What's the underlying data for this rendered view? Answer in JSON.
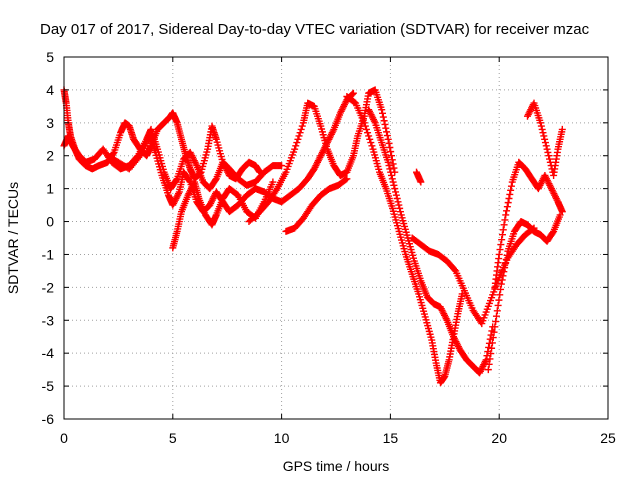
{
  "chart_data": {
    "type": "scatter",
    "title": "Day 017 of 2017, Sidereal Day-to-day VTEC variation (SDTVAR) for receiver mzac",
    "xlabel": "GPS time / hours",
    "ylabel": "SDTVAR / TECUs",
    "xlim": [
      0,
      25
    ],
    "ylim": [
      -6,
      5
    ],
    "xticks": [
      "0",
      "5",
      "10",
      "15",
      "20",
      "25"
    ],
    "yticks": [
      "5",
      "4",
      "3",
      "2",
      "1",
      "0",
      "-1",
      "-2",
      "-3",
      "-4",
      "-5",
      "-6"
    ],
    "grid": true,
    "marker": "plus",
    "color": "#ff0000",
    "series": [
      {
        "x": [
          0.0,
          0.1,
          0.2,
          0.3,
          0.5,
          0.7,
          1.0,
          1.3,
          1.6,
          2.0,
          2.3,
          2.6,
          2.8,
          3.0,
          3.2,
          3.5,
          3.8,
          4.0,
          4.3,
          4.6,
          4.9,
          5.0,
          5.2,
          5.4,
          5.6,
          5.8,
          6.0,
          6.3,
          6.6,
          6.8,
          7.0,
          7.3,
          7.6,
          7.9,
          8.2,
          8.5,
          8.8,
          9.0
        ],
        "y": [
          4.0,
          3.6,
          3.0,
          2.6,
          2.2,
          1.9,
          1.7,
          1.6,
          1.7,
          1.8,
          2.1,
          2.7,
          3.0,
          2.9,
          2.5,
          2.2,
          2.0,
          2.3,
          2.8,
          3.0,
          3.2,
          3.3,
          3.0,
          2.5,
          2.0,
          1.6,
          1.3,
          1.5,
          2.2,
          2.9,
          2.5,
          1.8,
          1.4,
          1.3,
          1.6,
          1.8,
          1.7,
          1.5
        ]
      },
      {
        "x": [
          0.0,
          0.2,
          0.4,
          0.7,
          1.0,
          1.4,
          1.8,
          2.2,
          2.6,
          3.0,
          3.4,
          3.8,
          4.0,
          4.3,
          4.6,
          4.9,
          5.2,
          5.5,
          5.8,
          6.1,
          6.4,
          6.7,
          7.0,
          7.3,
          7.6,
          8.0,
          8.4,
          8.8,
          9.2,
          9.6,
          10.0
        ],
        "y": [
          2.3,
          2.6,
          2.3,
          2.0,
          1.8,
          1.9,
          2.2,
          1.8,
          1.6,
          1.7,
          2.0,
          2.5,
          2.8,
          2.2,
          1.5,
          1.0,
          1.3,
          1.9,
          2.1,
          1.7,
          1.2,
          1.0,
          1.3,
          1.8,
          1.6,
          1.3,
          1.1,
          1.2,
          1.5,
          1.7,
          1.7
        ]
      },
      {
        "x": [
          2.0,
          2.5,
          3.0,
          3.5,
          4.0,
          4.2,
          4.5,
          4.8,
          5.0,
          5.3,
          5.5,
          5.8,
          6.1,
          6.4,
          6.7,
          7.0,
          7.3,
          7.6,
          8.0,
          8.4,
          8.8,
          9.2,
          9.6,
          10.0,
          10.4,
          10.8,
          11.2,
          11.5,
          11.8,
          12.1,
          12.4,
          12.7,
          13.0,
          13.3
        ],
        "y": [
          2.0,
          1.8,
          1.6,
          2.0,
          2.6,
          2.1,
          1.4,
          0.8,
          0.5,
          0.9,
          1.5,
          1.2,
          0.6,
          0.3,
          0.5,
          0.9,
          0.6,
          0.3,
          0.5,
          0.8,
          1.0,
          0.9,
          0.7,
          0.6,
          0.8,
          1.0,
          1.3,
          1.6,
          2.0,
          2.4,
          2.8,
          3.3,
          3.7,
          3.9
        ]
      },
      {
        "x": [
          5.0,
          5.2,
          5.4,
          5.7,
          6.0,
          6.2,
          6.5,
          6.8,
          7.0,
          7.3,
          7.6,
          8.0,
          8.4,
          8.8,
          9.2,
          9.6
        ],
        "y": [
          -0.8,
          -0.3,
          0.3,
          0.8,
          1.2,
          0.7,
          0.2,
          -0.1,
          0.2,
          0.7,
          1.0,
          0.8,
          0.3,
          0.1,
          0.6,
          1.2
        ]
      },
      {
        "x": [
          8.5,
          9.0,
          9.4,
          9.8,
          10.2,
          10.6,
          11.0,
          11.2,
          11.5,
          11.8,
          12.1,
          12.4,
          12.7,
          13.0,
          13.3,
          13.5,
          13.8,
          14.0,
          14.3,
          14.6,
          14.9,
          15.2
        ],
        "y": [
          0.0,
          0.3,
          0.6,
          1.0,
          1.5,
          2.2,
          3.0,
          3.6,
          3.5,
          2.9,
          2.2,
          1.7,
          1.4,
          1.5,
          2.0,
          2.6,
          3.2,
          3.9,
          4.0,
          3.4,
          2.5,
          1.5
        ]
      },
      {
        "x": [
          10.2,
          10.6,
          11.0,
          11.4,
          11.8,
          12.2,
          12.6,
          13.0
        ],
        "y": [
          -0.3,
          -0.2,
          0.1,
          0.5,
          0.8,
          1.0,
          1.1,
          1.3
        ]
      },
      {
        "x": [
          13.0,
          13.4,
          13.8,
          14.2,
          14.5,
          14.8,
          15.1,
          15.4,
          15.7,
          16.0,
          16.3,
          16.6,
          16.9,
          17.1,
          17.3,
          17.5,
          17.7,
          17.9,
          18.1,
          18.3
        ],
        "y": [
          3.8,
          3.6,
          3.0,
          2.2,
          1.5,
          1.0,
          0.4,
          -0.3,
          -1.0,
          -1.6,
          -2.2,
          -2.9,
          -3.6,
          -4.3,
          -4.9,
          -4.7,
          -4.2,
          -3.5,
          -2.8,
          -2.2
        ]
      },
      {
        "x": [
          14.0,
          14.3,
          14.6,
          14.9,
          15.2,
          15.5,
          15.8,
          16.1,
          16.4,
          16.7,
          17.0,
          17.3,
          17.6,
          17.9,
          18.2,
          18.5,
          18.8,
          19.1,
          19.4,
          19.7
        ],
        "y": [
          3.4,
          3.0,
          2.4,
          1.8,
          1.0,
          0.2,
          -0.5,
          -1.2,
          -1.8,
          -2.3,
          -2.5,
          -2.6,
          -3.0,
          -3.5,
          -3.9,
          -4.2,
          -4.4,
          -4.6,
          -4.2,
          -3.2
        ]
      },
      {
        "x": [
          16.0,
          16.4,
          16.8,
          17.2,
          17.6,
          18.0,
          18.4,
          18.8,
          19.2,
          19.6,
          20.0,
          20.4,
          20.8,
          21.2,
          21.6
        ],
        "y": [
          -0.5,
          -0.7,
          -0.9,
          -1.0,
          -1.2,
          -1.5,
          -2.1,
          -2.7,
          -3.1,
          -2.4,
          -1.7,
          -1.1,
          -0.7,
          -0.4,
          -0.2
        ]
      },
      {
        "x": [
          16.2,
          16.4
        ],
        "y": [
          1.5,
          1.2
        ]
      },
      {
        "x": [
          19.8,
          20.0,
          20.3,
          20.6,
          20.9,
          21.2,
          21.5,
          21.8,
          22.1,
          22.4,
          22.7,
          22.9
        ],
        "y": [
          -2.0,
          -1.0,
          0.2,
          1.2,
          1.8,
          1.6,
          1.3,
          1.0,
          1.4,
          1.0,
          0.6,
          0.3
        ]
      },
      {
        "x": [
          19.5,
          19.8,
          20.1,
          20.4,
          20.7,
          21.0,
          21.3,
          21.6,
          21.9,
          22.2,
          22.5,
          22.8
        ],
        "y": [
          -4.5,
          -3.2,
          -1.9,
          -0.9,
          -0.3,
          0.0,
          -0.1,
          -0.3,
          -0.4,
          -0.6,
          -0.3,
          0.2
        ]
      },
      {
        "x": [
          21.3,
          21.6,
          21.9,
          22.2,
          22.5,
          22.7,
          22.9
        ],
        "y": [
          3.2,
          3.6,
          3.0,
          2.2,
          1.4,
          2.2,
          2.8
        ]
      }
    ]
  }
}
